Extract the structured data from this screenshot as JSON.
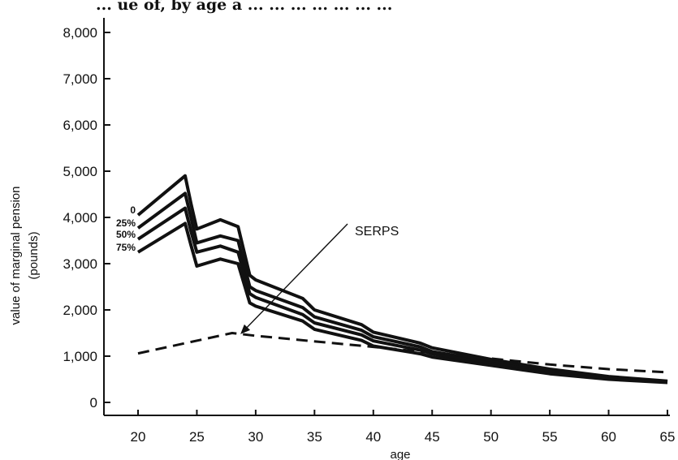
{
  "chart_data": {
    "type": "line",
    "title": "",
    "xlabel": "age",
    "ylabel": "value of marginal pension",
    "ylabel_unit": "(pounds)",
    "xlim": [
      20,
      65
    ],
    "ylim": [
      0,
      8000
    ],
    "x_ticks": [
      20,
      25,
      30,
      35,
      40,
      45,
      50,
      55,
      60,
      65
    ],
    "y_ticks": [
      0,
      1000,
      2000,
      3000,
      4000,
      5000,
      6000,
      7000,
      8000
    ],
    "y_tick_labels": [
      "0",
      "1,000",
      "2,000",
      "3,000",
      "4,000",
      "5,000",
      "6,000",
      "7,000",
      "8,000"
    ],
    "grid": false,
    "legend": "none",
    "series": [
      {
        "name": "0",
        "style": "solid",
        "x": [
          20,
          24,
          24.5,
          25,
          27,
          28.5,
          29.5,
          30,
          34,
          35,
          39,
          40,
          44,
          45,
          50,
          55,
          60,
          65
        ],
        "y": [
          4050,
          4900,
          4300,
          3750,
          3950,
          3800,
          2750,
          2650,
          2250,
          2000,
          1680,
          1520,
          1280,
          1180,
          930,
          720,
          560,
          460
        ]
      },
      {
        "name": "25%",
        "style": "solid",
        "x": [
          20,
          24,
          24.5,
          25,
          27,
          28.5,
          29.5,
          30,
          34,
          35,
          39,
          40,
          44,
          45,
          50,
          55,
          60,
          65
        ],
        "y": [
          3770,
          4520,
          4000,
          3450,
          3600,
          3500,
          2500,
          2420,
          2050,
          1850,
          1560,
          1420,
          1200,
          1100,
          880,
          680,
          540,
          450
        ]
      },
      {
        "name": "50%",
        "style": "solid",
        "x": [
          20,
          24,
          24.5,
          25,
          27,
          28.5,
          29.5,
          30,
          34,
          35,
          39,
          40,
          44,
          45,
          50,
          55,
          60,
          65
        ],
        "y": [
          3530,
          4200,
          3700,
          3250,
          3380,
          3250,
          2350,
          2270,
          1900,
          1720,
          1460,
          1330,
          1130,
          1050,
          840,
          660,
          520,
          440
        ]
      },
      {
        "name": "75%",
        "style": "solid",
        "x": [
          20,
          24,
          24.5,
          25,
          27,
          28.5,
          29.5,
          30,
          34,
          35,
          39,
          40,
          44,
          45,
          50,
          55,
          60,
          65
        ],
        "y": [
          3250,
          3870,
          3400,
          2950,
          3100,
          3000,
          2150,
          2080,
          1760,
          1580,
          1340,
          1220,
          1050,
          980,
          800,
          620,
          500,
          430
        ]
      },
      {
        "name": "SERPS",
        "style": "dashed",
        "x": [
          20,
          28,
          30,
          40,
          50,
          55,
          60,
          65
        ],
        "y": [
          1060,
          1500,
          1440,
          1200,
          950,
          820,
          720,
          650
        ]
      }
    ],
    "annotations": [
      {
        "text": "SERPS",
        "arrow_to_x": 28.8,
        "arrow_to_y": 1500
      }
    ],
    "cut_title_fragment": "... ue of, by age a ... ... ... ... ... ... ..."
  }
}
